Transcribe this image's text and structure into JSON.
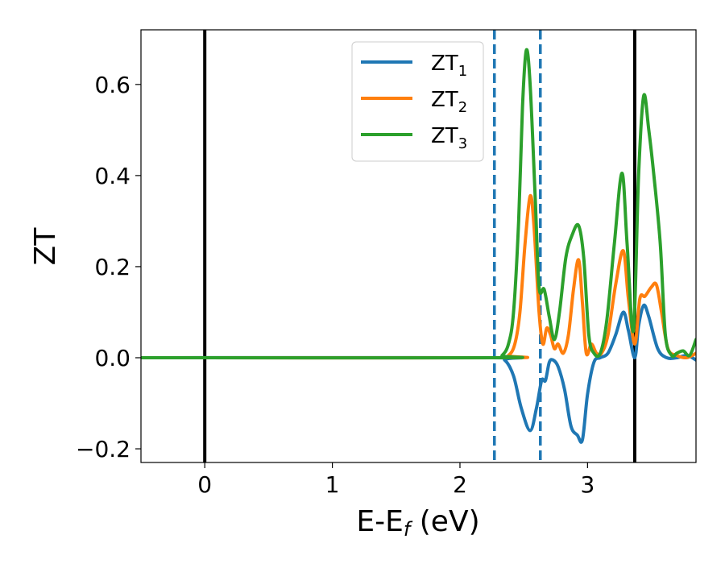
{
  "chart_data": {
    "type": "line",
    "xlabel_main": "E-E",
    "xlabel_sub": "f",
    "xlabel_unit": " (eV)",
    "ylabel": "ZT",
    "xlim": [
      -0.5,
      3.85
    ],
    "ylim": [
      -0.23,
      0.72
    ],
    "xticks": [
      {
        "value": 0,
        "label": "0"
      },
      {
        "value": 1,
        "label": "1"
      },
      {
        "value": 2,
        "label": "2"
      },
      {
        "value": 3,
        "label": "3"
      }
    ],
    "yticks": [
      {
        "value": -0.2,
        "label": "−0.2"
      },
      {
        "value": 0.0,
        "label": "0.0"
      },
      {
        "value": 0.2,
        "label": "0.2"
      },
      {
        "value": 0.4,
        "label": "0.4"
      },
      {
        "value": 0.6,
        "label": "0.6"
      }
    ],
    "legend_position": "top-center",
    "vlines": [
      {
        "x": 0.0,
        "style": "solid",
        "color": "#000000"
      },
      {
        "x": 3.37,
        "style": "solid",
        "color": "#000000"
      },
      {
        "x": 2.27,
        "style": "dashed",
        "color": "#1f77b4"
      },
      {
        "x": 2.63,
        "style": "dashed",
        "color": "#1f77b4"
      }
    ],
    "series": [
      {
        "name_main": "ZT",
        "name_sub": "1",
        "color": "#1f77b4",
        "points": [
          [
            -0.5,
            0
          ],
          [
            2.25,
            0
          ],
          [
            2.35,
            -0.005
          ],
          [
            2.42,
            -0.04
          ],
          [
            2.48,
            -0.11
          ],
          [
            2.55,
            -0.16
          ],
          [
            2.6,
            -0.11
          ],
          [
            2.64,
            -0.05
          ],
          [
            2.67,
            -0.05
          ],
          [
            2.7,
            -0.01
          ],
          [
            2.73,
            -0.005
          ],
          [
            2.77,
            -0.02
          ],
          [
            2.82,
            -0.07
          ],
          [
            2.87,
            -0.15
          ],
          [
            2.92,
            -0.17
          ],
          [
            2.96,
            -0.18
          ],
          [
            3.0,
            -0.08
          ],
          [
            3.05,
            -0.01
          ],
          [
            3.1,
            0
          ],
          [
            3.16,
            0.01
          ],
          [
            3.22,
            0.05
          ],
          [
            3.28,
            0.1
          ],
          [
            3.32,
            0.06
          ],
          [
            3.37,
            0.0
          ],
          [
            3.4,
            0.07
          ],
          [
            3.44,
            0.115
          ],
          [
            3.48,
            0.09
          ],
          [
            3.55,
            0.02
          ],
          [
            3.62,
            0.0
          ],
          [
            3.7,
            0.0
          ],
          [
            3.78,
            0.005
          ],
          [
            3.85,
            -0.005
          ]
        ]
      },
      {
        "name_main": "ZT",
        "name_sub": "2",
        "color": "#ff7f0e",
        "points": [
          [
            -0.5,
            0
          ],
          [
            2.3,
            0
          ],
          [
            2.38,
            0.005
          ],
          [
            2.43,
            0.03
          ],
          [
            2.47,
            0.1
          ],
          [
            2.51,
            0.25
          ],
          [
            2.55,
            0.355
          ],
          [
            2.58,
            0.29
          ],
          [
            2.62,
            0.1
          ],
          [
            2.65,
            0.03
          ],
          [
            2.68,
            0.065
          ],
          [
            2.71,
            0.05
          ],
          [
            2.74,
            0.02
          ],
          [
            2.77,
            0.03
          ],
          [
            2.81,
            0.01
          ],
          [
            2.85,
            0.05
          ],
          [
            2.89,
            0.15
          ],
          [
            2.93,
            0.215
          ],
          [
            2.96,
            0.12
          ],
          [
            2.99,
            0.01
          ],
          [
            3.03,
            0.03
          ],
          [
            3.07,
            0.01
          ],
          [
            3.11,
            0.01
          ],
          [
            3.16,
            0.05
          ],
          [
            3.22,
            0.16
          ],
          [
            3.28,
            0.235
          ],
          [
            3.32,
            0.13
          ],
          [
            3.37,
            0.03
          ],
          [
            3.41,
            0.13
          ],
          [
            3.45,
            0.135
          ],
          [
            3.5,
            0.155
          ],
          [
            3.54,
            0.16
          ],
          [
            3.58,
            0.1
          ],
          [
            3.63,
            0.02
          ],
          [
            3.7,
            0.005
          ],
          [
            3.77,
            0.0
          ],
          [
            3.82,
            0.005
          ],
          [
            3.85,
            0.01
          ]
        ]
      },
      {
        "name_main": "ZT",
        "name_sub": "3",
        "color": "#2ca02c",
        "points": [
          [
            -0.5,
            0
          ],
          [
            2.27,
            0
          ],
          [
            2.33,
            0.005
          ],
          [
            2.38,
            0.03
          ],
          [
            2.42,
            0.1
          ],
          [
            2.46,
            0.3
          ],
          [
            2.49,
            0.55
          ],
          [
            2.52,
            0.675
          ],
          [
            2.55,
            0.6
          ],
          [
            2.59,
            0.35
          ],
          [
            2.62,
            0.155
          ],
          [
            2.66,
            0.15
          ],
          [
            2.7,
            0.09
          ],
          [
            2.74,
            0.04
          ],
          [
            2.78,
            0.1
          ],
          [
            2.83,
            0.22
          ],
          [
            2.88,
            0.27
          ],
          [
            2.93,
            0.29
          ],
          [
            2.97,
            0.22
          ],
          [
            3.01,
            0.05
          ],
          [
            3.05,
            0.01
          ],
          [
            3.1,
            0.01
          ],
          [
            3.15,
            0.08
          ],
          [
            3.21,
            0.25
          ],
          [
            3.27,
            0.405
          ],
          [
            3.31,
            0.25
          ],
          [
            3.36,
            0.06
          ],
          [
            3.4,
            0.4
          ],
          [
            3.44,
            0.575
          ],
          [
            3.48,
            0.5
          ],
          [
            3.52,
            0.4
          ],
          [
            3.57,
            0.25
          ],
          [
            3.61,
            0.05
          ],
          [
            3.66,
            0.005
          ],
          [
            3.7,
            0.01
          ],
          [
            3.75,
            0.015
          ],
          [
            3.8,
            0.005
          ],
          [
            3.85,
            0.04
          ]
        ]
      }
    ]
  }
}
